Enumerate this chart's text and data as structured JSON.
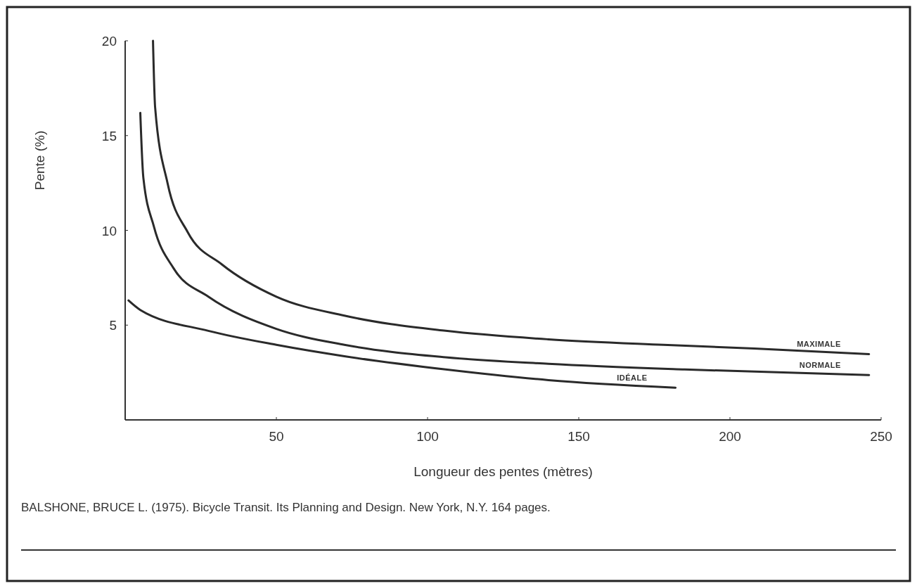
{
  "chart_data": {
    "type": "line",
    "xlabel": "Longueur des pentes  (mètres)",
    "ylabel": "Pente  (%)",
    "xlim": [
      0,
      250
    ],
    "ylim": [
      0,
      20
    ],
    "xticks": [
      50,
      100,
      150,
      200,
      250
    ],
    "yticks": [
      5,
      10,
      15,
      20
    ],
    "grid": false,
    "marker": "none",
    "line_style": "solid",
    "series": [
      {
        "name": "MAXIMALE",
        "color": "#2a2a2a",
        "x": [
          9.2,
          9.9,
          14,
          20.7,
          32,
          50,
          72.5,
          106,
          140,
          178,
          208,
          246
        ],
        "values": [
          20,
          16.5,
          12.5,
          9.9,
          8.2,
          6.5,
          5.5,
          4.7,
          4.25,
          3.96,
          3.77,
          3.47
        ]
      },
      {
        "name": "NORMALE",
        "color": "#2a2a2a",
        "x": [
          5,
          6,
          9.5,
          16,
          27.5,
          50,
          72.5,
          106,
          140,
          185,
          246
        ],
        "values": [
          16.2,
          12.8,
          10.2,
          8.0,
          6.5,
          4.8,
          3.96,
          3.3,
          2.96,
          2.66,
          2.37
        ]
      },
      {
        "name": "IDÉALE",
        "color": "#2a2a2a",
        "x": [
          1.1,
          5,
          27.5,
          50,
          72.5,
          106,
          140,
          182
        ],
        "values": [
          6.3,
          5.8,
          4.7,
          3.96,
          3.36,
          2.66,
          2.1,
          1.7
        ]
      }
    ],
    "annotations": [
      "BALSHONE, BRUCE L. (1975). Bicycle Transit. Its Planning and Design. New York, N.Y. 164 pages."
    ]
  }
}
